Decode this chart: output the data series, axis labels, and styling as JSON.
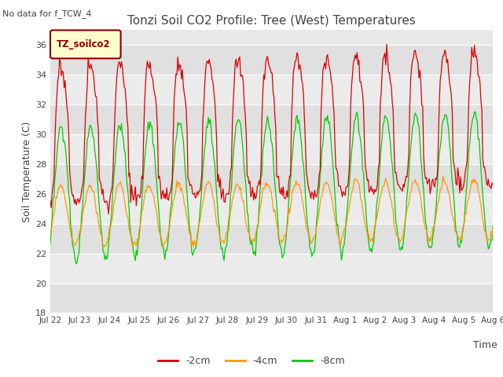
{
  "title": "Tonzi Soil CO2 Profile: Tree (West) Temperatures",
  "subtitle": "No data for f_TCW_4",
  "ylabel": "Soil Temperature (C)",
  "xlabel": "Time",
  "ylim": [
    18,
    37
  ],
  "yticks": [
    18,
    20,
    22,
    24,
    26,
    28,
    30,
    32,
    34,
    36
  ],
  "xtick_labels": [
    "Jul 22",
    "Jul 23",
    "Jul 24",
    "Jul 25",
    "Jul 26",
    "Jul 27",
    "Jul 28",
    "Jul 29",
    "Jul 30",
    "Jul 31",
    "Aug 1",
    "Aug 2",
    "Aug 3",
    "Aug 4",
    "Aug 5",
    "Aug 6"
  ],
  "legend_label": "TZ_soilco2",
  "series_labels": [
    "-2cm",
    "-4cm",
    "-8cm"
  ],
  "series_colors": [
    "#dd0000",
    "#ff9900",
    "#00cc00"
  ],
  "plot_bg_light": "#e8e8e8",
  "plot_bg_dark": "#d0d0d0",
  "n_points": 480,
  "days": 15
}
